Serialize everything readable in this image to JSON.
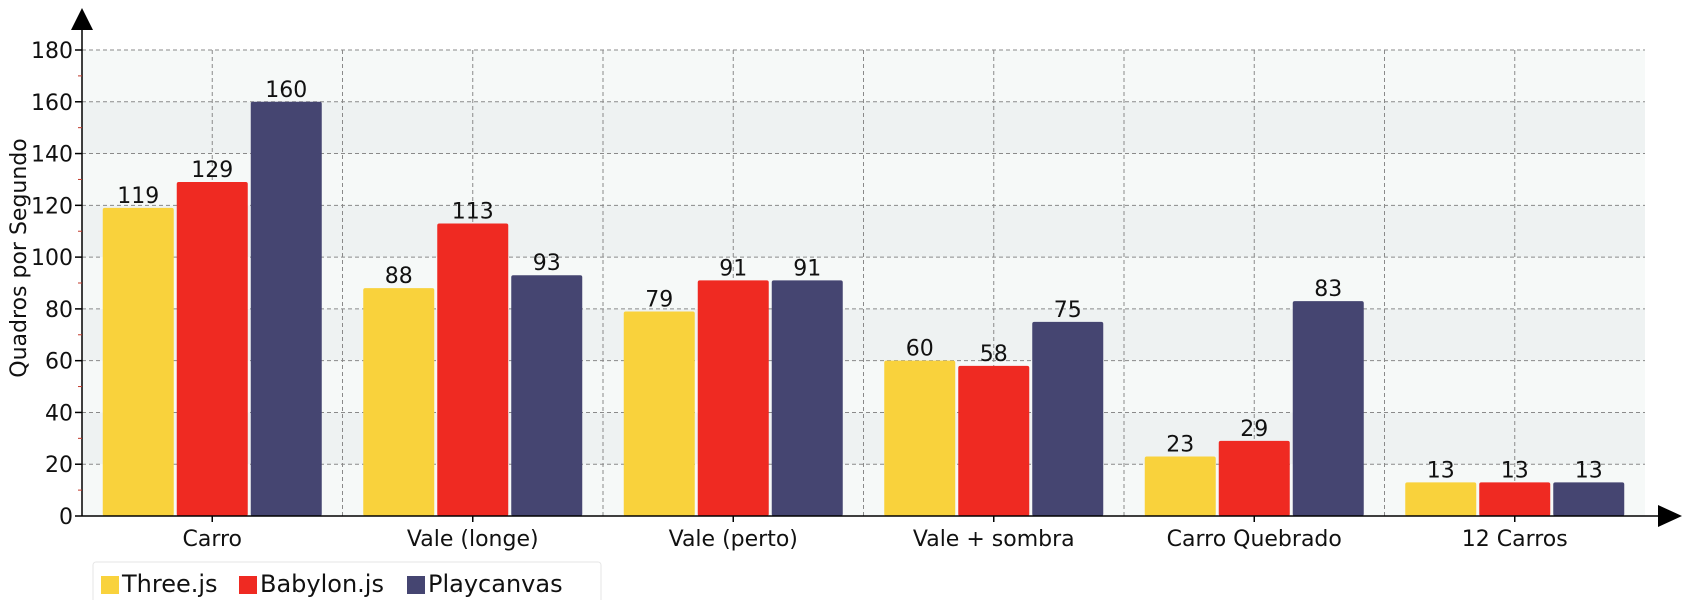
{
  "chart_data": {
    "type": "bar",
    "title": "",
    "xlabel": "",
    "ylabel": "Quadros por Segundo",
    "ylim": [
      0,
      180
    ],
    "yticks": [
      0,
      20,
      40,
      60,
      80,
      100,
      120,
      140,
      160,
      180
    ],
    "grid": true,
    "legend_position": "bottom-left",
    "categories": [
      "Carro",
      "Vale (longe)",
      "Vale (perto)",
      "Vale + sombra",
      "Carro Quebrado",
      "12 Carros"
    ],
    "series": [
      {
        "name": "Three.js",
        "color": "#f9d23c",
        "values": [
          119,
          88,
          79,
          60,
          23,
          13
        ]
      },
      {
        "name": "Babylon.js",
        "color": "#ef2a22",
        "values": [
          129,
          113,
          91,
          58,
          29,
          13
        ]
      },
      {
        "name": "Playcanvas",
        "color": "#454571",
        "values": [
          160,
          93,
          91,
          75,
          83,
          13
        ]
      }
    ]
  }
}
